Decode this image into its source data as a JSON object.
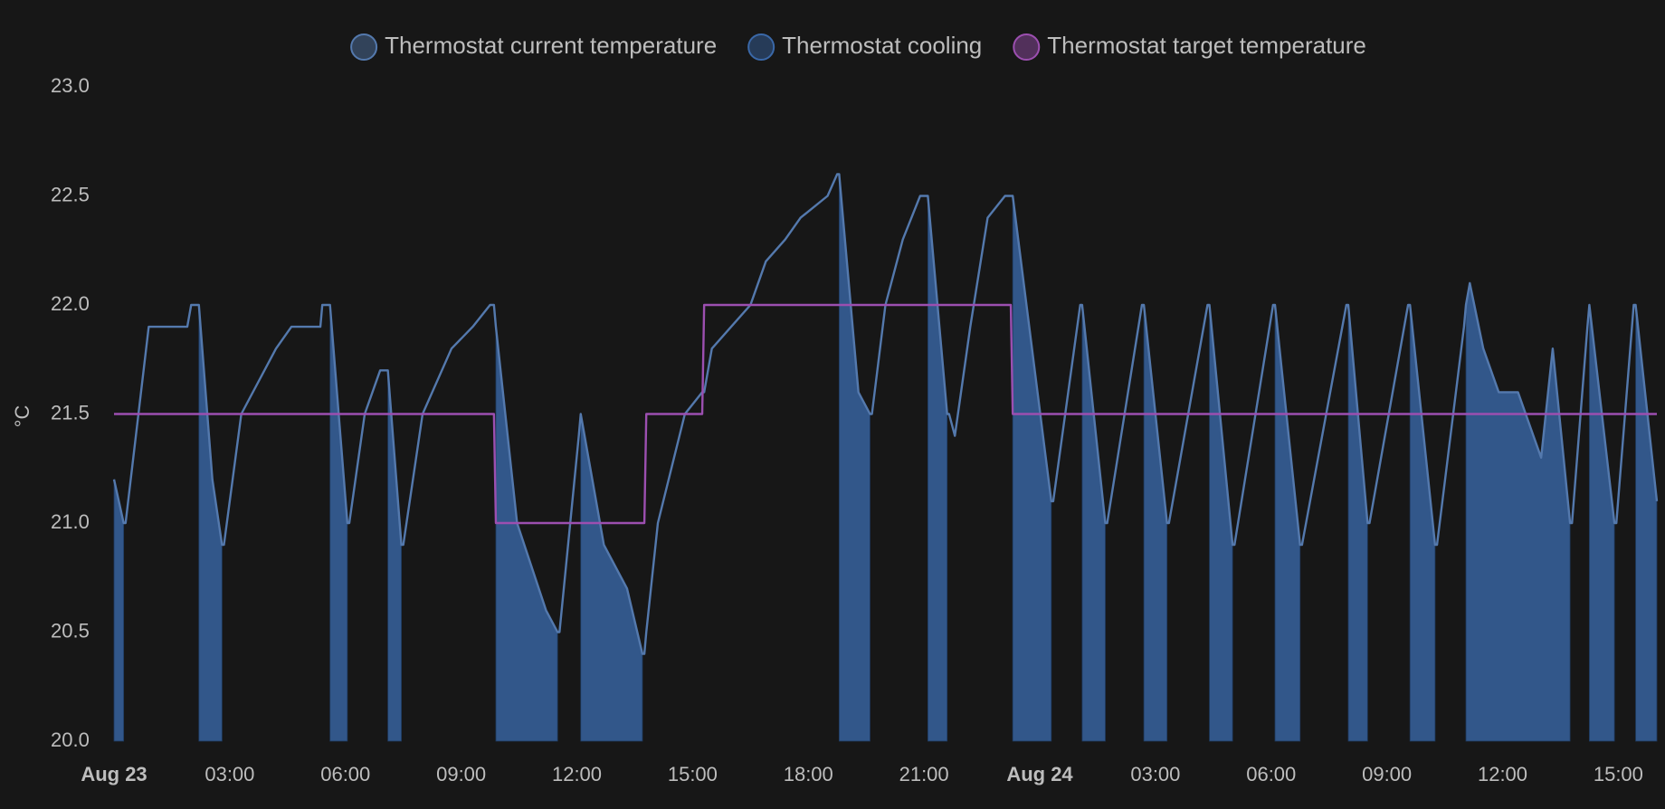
{
  "chart_data": {
    "type": "line",
    "y_label": "°C",
    "xlim": [
      0,
      40
    ],
    "xticks": [
      {
        "value": 0,
        "label": "Aug 23",
        "bold": true
      },
      {
        "value": 3,
        "label": "03:00"
      },
      {
        "value": 6,
        "label": "06:00"
      },
      {
        "value": 9,
        "label": "09:00"
      },
      {
        "value": 12,
        "label": "12:00"
      },
      {
        "value": 15,
        "label": "15:00"
      },
      {
        "value": 18,
        "label": "18:00"
      },
      {
        "value": 21,
        "label": "21:00"
      },
      {
        "value": 24,
        "label": "Aug 24",
        "bold": true
      },
      {
        "value": 27,
        "label": "03:00"
      },
      {
        "value": 30,
        "label": "06:00"
      },
      {
        "value": 33,
        "label": "09:00"
      },
      {
        "value": 36,
        "label": "12:00"
      },
      {
        "value": 39,
        "label": "15:00"
      }
    ],
    "ylim": [
      20,
      23
    ],
    "yticks": [
      {
        "value": 20,
        "label": "20.0"
      },
      {
        "value": 20.5,
        "label": "20.5"
      },
      {
        "value": 21,
        "label": "21.0"
      },
      {
        "value": 21.5,
        "label": "21.5"
      },
      {
        "value": 22,
        "label": "22.0"
      },
      {
        "value": 22.5,
        "label": "22.5"
      },
      {
        "value": 23,
        "label": "23.0"
      }
    ],
    "grid": false,
    "legend": "top",
    "x": [
      0,
      0.25,
      0.3,
      0.9,
      1.9,
      2.0,
      2.2,
      2.55,
      2.8,
      2.85,
      3.3,
      4.2,
      4.6,
      5.35,
      5.4,
      5.6,
      6.05,
      6.1,
      6.5,
      6.9,
      7.1,
      7.45,
      7.5,
      8.0,
      8.75,
      9.3,
      9.75,
      9.85,
      9.9,
      10.45,
      11.2,
      11.5,
      11.55,
      12.05,
      12.1,
      12.7,
      13.3,
      13.7,
      13.75,
      13.8,
      14.1,
      14.8,
      15.25,
      15.3,
      15.5,
      16.0,
      16.5,
      16.9,
      17.4,
      17.8,
      18.5,
      18.75,
      18.8,
      19.3,
      19.6,
      19.65,
      20.0,
      20.45,
      20.9,
      21.1,
      21.6,
      21.65,
      21.8,
      22.2,
      22.65,
      23.1,
      23.25,
      23.3,
      24.3,
      24.35,
      25.05,
      25.1,
      25.7,
      25.75,
      26.65,
      26.7,
      27.3,
      27.35,
      28.35,
      28.4,
      29.0,
      29.05,
      30.05,
      30.1,
      30.75,
      30.8,
      31.95,
      32.0,
      32.5,
      32.55,
      33.55,
      33.6,
      34.25,
      34.3,
      35.0,
      35.05,
      35.15,
      35.5,
      35.9,
      36.4,
      36.8,
      37.0,
      37.3,
      37.75,
      37.8,
      38.2,
      38.25,
      38.9,
      38.95,
      39.4,
      39.45,
      40.0
    ],
    "series": [
      {
        "name": "Thermostat current temperature",
        "color": "#5479ad",
        "style": "line",
        "values": [
          21.2,
          21.0,
          21.0,
          21.9,
          21.9,
          22.0,
          22.0,
          21.2,
          20.9,
          20.9,
          21.5,
          21.8,
          21.9,
          21.9,
          22.0,
          22.0,
          21.0,
          21.0,
          21.5,
          21.7,
          21.7,
          20.9,
          20.9,
          21.5,
          21.8,
          21.9,
          22.0,
          22.0,
          21.9,
          21.0,
          20.6,
          20.5,
          20.5,
          21.4,
          21.5,
          20.9,
          20.7,
          20.4,
          20.4,
          20.5,
          21.0,
          21.5,
          21.6,
          21.6,
          21.8,
          21.9,
          22.0,
          22.2,
          22.3,
          22.4,
          22.5,
          22.6,
          22.6,
          21.6,
          21.5,
          21.5,
          22.0,
          22.3,
          22.5,
          22.5,
          21.5,
          21.5,
          21.4,
          21.9,
          22.4,
          22.5,
          22.5,
          22.5,
          21.1,
          21.1,
          22.0,
          22.0,
          21.0,
          21.0,
          22.0,
          22.0,
          21.0,
          21.0,
          22.0,
          22.0,
          20.9,
          20.9,
          22.0,
          22.0,
          20.9,
          20.9,
          22.0,
          22.0,
          21.0,
          21.0,
          22.0,
          22.0,
          20.9,
          20.9,
          21.9,
          22.0,
          22.1,
          21.8,
          21.6,
          21.6,
          21.4,
          21.3,
          21.8,
          21.0,
          21.0,
          21.9,
          22.0,
          21.0,
          21.0,
          22.0,
          22.0,
          21.1
        ]
      },
      {
        "name": "Thermostat cooling",
        "color": "#3a68a8",
        "style": "area",
        "values": [
          21.2,
          21.0,
          null,
          null,
          null,
          null,
          22.0,
          21.2,
          20.9,
          null,
          null,
          null,
          null,
          null,
          null,
          22.0,
          21.0,
          null,
          null,
          null,
          21.7,
          20.9,
          null,
          null,
          null,
          null,
          null,
          null,
          21.9,
          21.0,
          20.6,
          20.5,
          null,
          null,
          21.5,
          20.9,
          20.7,
          20.4,
          null,
          null,
          null,
          null,
          null,
          null,
          null,
          null,
          null,
          null,
          null,
          null,
          null,
          null,
          22.6,
          21.6,
          21.5,
          null,
          null,
          null,
          null,
          22.5,
          21.5,
          null,
          null,
          null,
          null,
          null,
          null,
          22.5,
          21.1,
          null,
          null,
          22.0,
          21.0,
          null,
          null,
          22.0,
          21.0,
          null,
          null,
          22.0,
          20.9,
          null,
          null,
          22.0,
          20.9,
          null,
          null,
          22.0,
          21.0,
          null,
          null,
          22.0,
          20.9,
          null,
          null,
          22.0,
          22.1,
          21.8,
          21.6,
          21.6,
          21.4,
          21.3,
          21.8,
          21.0,
          null,
          null,
          22.0,
          21.0,
          null,
          null,
          22.0,
          21.1
        ]
      },
      {
        "name": "Thermostat target temperature",
        "color": "#9c4fb0",
        "style": "line",
        "values": [
          21.5,
          21.5,
          21.5,
          21.5,
          21.5,
          21.5,
          21.5,
          21.5,
          21.5,
          21.5,
          21.5,
          21.5,
          21.5,
          21.5,
          21.5,
          21.5,
          21.5,
          21.5,
          21.5,
          21.5,
          21.5,
          21.5,
          21.5,
          21.5,
          21.5,
          21.5,
          21.5,
          21.5,
          21.0,
          21.0,
          21.0,
          21.0,
          21.0,
          21.0,
          21.0,
          21.0,
          21.0,
          21.0,
          21.0,
          21.5,
          21.5,
          21.5,
          21.5,
          22.0,
          22.0,
          22.0,
          22.0,
          22.0,
          22.0,
          22.0,
          22.0,
          22.0,
          22.0,
          22.0,
          22.0,
          22.0,
          22.0,
          22.0,
          22.0,
          22.0,
          22.0,
          22.0,
          22.0,
          22.0,
          22.0,
          22.0,
          22.0,
          21.5,
          21.5,
          21.5,
          21.5,
          21.5,
          21.5,
          21.5,
          21.5,
          21.5,
          21.5,
          21.5,
          21.5,
          21.5,
          21.5,
          21.5,
          21.5,
          21.5,
          21.5,
          21.5,
          21.5,
          21.5,
          21.5,
          21.5,
          21.5,
          21.5,
          21.5,
          21.5,
          21.5,
          21.5,
          21.5,
          21.5,
          21.5,
          21.5,
          21.5,
          21.5,
          21.5,
          21.5,
          21.5,
          21.5,
          21.5,
          21.5,
          21.5,
          21.5,
          21.5,
          21.5
        ]
      }
    ]
  }
}
